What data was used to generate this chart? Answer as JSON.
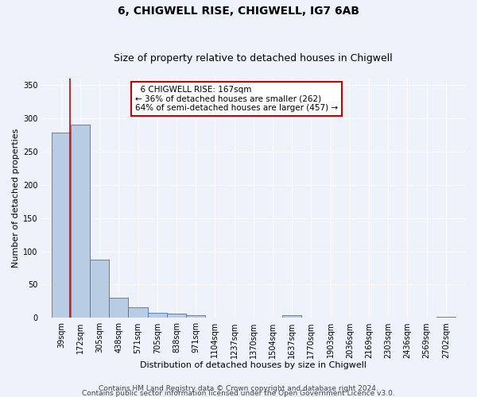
{
  "title": "6, CHIGWELL RISE, CHIGWELL, IG7 6AB",
  "subtitle": "Size of property relative to detached houses in Chigwell",
  "xlabel": "Distribution of detached houses by size in Chigwell",
  "ylabel": "Number of detached properties",
  "footnote1": "Contains HM Land Registry data © Crown copyright and database right 2024.",
  "footnote2": "Contains public sector information licensed under the Open Government Licence v3.0.",
  "annotation_line1": "  6 CHIGWELL RISE: 167sqm  ",
  "annotation_line2": "← 36% of detached houses are smaller (262)",
  "annotation_line3": "64% of semi-detached houses are larger (457) →",
  "property_size": 167,
  "categories": [
    "39sqm",
    "172sqm",
    "305sqm",
    "438sqm",
    "571sqm",
    "705sqm",
    "838sqm",
    "971sqm",
    "1104sqm",
    "1237sqm",
    "1370sqm",
    "1504sqm",
    "1637sqm",
    "1770sqm",
    "1903sqm",
    "2036sqm",
    "2169sqm",
    "2303sqm",
    "2436sqm",
    "2569sqm",
    "2702sqm"
  ],
  "bar_left_edges": [
    39,
    172,
    305,
    438,
    571,
    705,
    838,
    971,
    1104,
    1237,
    1370,
    1504,
    1637,
    1770,
    1903,
    2036,
    2169,
    2303,
    2436,
    2569,
    2702
  ],
  "bar_widths": [
    133,
    133,
    133,
    133,
    133,
    133,
    133,
    133,
    133,
    133,
    133,
    133,
    133,
    133,
    133,
    133,
    133,
    133,
    133,
    133,
    133
  ],
  "values": [
    278,
    290,
    88,
    30,
    16,
    8,
    6,
    4,
    1,
    1,
    1,
    1,
    4,
    0,
    0,
    0,
    0,
    0,
    0,
    0,
    2
  ],
  "bar_color": "#b8cce4",
  "bar_edge_color": "#4472c4",
  "annotation_box_color": "#ffffff",
  "annotation_box_edge": "#cc0000",
  "line_color": "#cc0000",
  "ylim": [
    0,
    360
  ],
  "yticks": [
    0,
    50,
    100,
    150,
    200,
    250,
    300,
    350
  ],
  "bg_color": "#eef2fb",
  "grid_color": "#ffffff",
  "title_fontsize": 10,
  "subtitle_fontsize": 9,
  "axis_fontsize": 8,
  "tick_fontsize": 7,
  "annotation_fontsize": 7.5,
  "footnote_fontsize": 6.5
}
